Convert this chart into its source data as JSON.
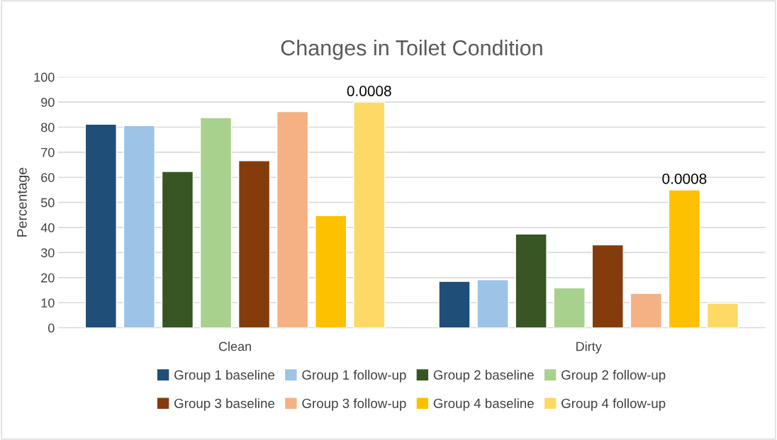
{
  "chart_data": {
    "type": "bar",
    "title": "Changes in Toilet Condition",
    "ylabel": "Percentage",
    "categories": [
      "Clean",
      "Dirty"
    ],
    "series": [
      {
        "name": "Group 1 baseline",
        "color": "#1f4e79",
        "values": [
          81.2,
          18.5
        ]
      },
      {
        "name": "Group 1 follow-up",
        "color": "#9dc3e6",
        "values": [
          80.6,
          19.2
        ]
      },
      {
        "name": "Group 2 baseline",
        "color": "#375623",
        "values": [
          62.3,
          37.4
        ]
      },
      {
        "name": "Group 2 follow-up",
        "color": "#a9d18e",
        "values": [
          83.8,
          15.9
        ]
      },
      {
        "name": "Group 3 baseline",
        "color": "#843c0c",
        "values": [
          66.6,
          33.1
        ]
      },
      {
        "name": "Group 3 follow-up",
        "color": "#f4b183",
        "values": [
          86.2,
          13.7
        ]
      },
      {
        "name": "Group 4 baseline",
        "color": "#ffc000",
        "values": [
          44.7,
          55
        ]
      },
      {
        "name": "Group 4 follow-up",
        "color": "#ffd966",
        "values": [
          90,
          9.8
        ]
      }
    ],
    "ylim": [
      0,
      100
    ],
    "yticks": [
      0,
      10,
      20,
      30,
      40,
      50,
      60,
      70,
      80,
      90,
      100
    ],
    "grid": "y",
    "legend": "bottom",
    "annotations": [
      "0.0008",
      "0.0008"
    ]
  }
}
